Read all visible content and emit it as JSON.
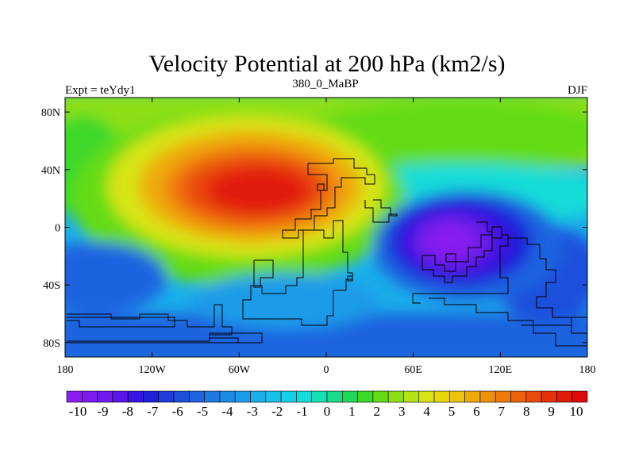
{
  "chart_data": {
    "type": "heatmap",
    "title": "Velocity Potential at 200 hPa (km2/s)",
    "subtitle_left": "Expt = teYdy1",
    "subtitle_center": "380_0_MaBP",
    "subtitle_right": "DJF",
    "x_range": [
      -180,
      180
    ],
    "y_range": [
      -90,
      90
    ],
    "x_ticks": [
      {
        "value": -180,
        "label": "180"
      },
      {
        "value": -120,
        "label": "120W"
      },
      {
        "value": -60,
        "label": "60W"
      },
      {
        "value": 0,
        "label": "0"
      },
      {
        "value": 60,
        "label": "60E"
      },
      {
        "value": 120,
        "label": "120E"
      },
      {
        "value": 180,
        "label": "180"
      }
    ],
    "y_ticks": [
      {
        "value": 80,
        "label": "80N"
      },
      {
        "value": 40,
        "label": "40N"
      },
      {
        "value": 0,
        "label": "0"
      },
      {
        "value": -40,
        "label": "40S"
      },
      {
        "value": -80,
        "label": "80S"
      }
    ],
    "colorbar": {
      "labels": [
        "-10",
        "-9",
        "-8",
        "-7",
        "-6",
        "-5",
        "-4",
        "-3",
        "-2",
        "-1",
        "0",
        "1",
        "2",
        "3",
        "4",
        "5",
        "6",
        "7",
        "8",
        "9",
        "10"
      ],
      "min": -10,
      "max": 10,
      "colors": [
        "#8a1ef0",
        "#7d1aee",
        "#6f1aea",
        "#5a16e6",
        "#3a14e0",
        "#1f1ed8",
        "#1e3cd8",
        "#1e50dc",
        "#1e64e0",
        "#1e78e4",
        "#1a8ae6",
        "#1a9ce8",
        "#1aaeea",
        "#18c0ea",
        "#16d0e8",
        "#14dcd8",
        "#14e0b4",
        "#18dc8c",
        "#1ed85a",
        "#3cd82a",
        "#64dc14",
        "#8ee014",
        "#b4e414",
        "#d8e414",
        "#e8d80a",
        "#ecc20a",
        "#eeaa0a",
        "#ee920a",
        "#ee7a0a",
        "#ec620a",
        "#ea4a0a",
        "#e6320a",
        "#e21a0a",
        "#dc0a0a"
      ]
    },
    "centers": [
      {
        "name": "divergence-center",
        "lon": -40,
        "lat": 25,
        "value": 10
      },
      {
        "name": "convergence-center",
        "lon": 85,
        "lat": -10,
        "value": -10
      }
    ]
  }
}
